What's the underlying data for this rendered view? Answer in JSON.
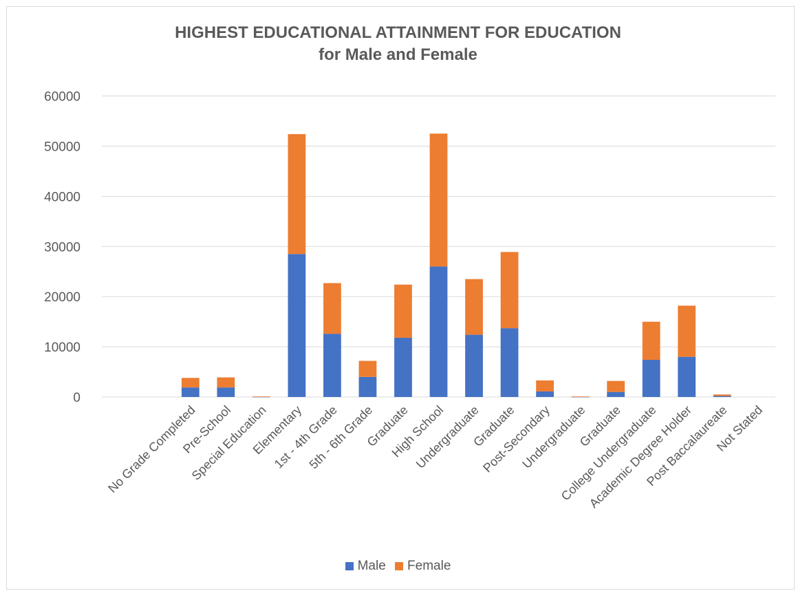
{
  "chart_data": {
    "type": "bar",
    "stacked": true,
    "title_line1": "HIGHEST EDUCATIONAL ATTAINMENT FOR EDUCATION",
    "title_line2": "for Male and Female",
    "categories": [
      "",
      "",
      "No Grade Completed",
      "Pre-School",
      "Special Education",
      "Elementary",
      "1st - 4th Grade",
      "5th - 6th Grade",
      "Graduate",
      "High School",
      "Undergraduate",
      "Graduate",
      "Post-Secondary",
      "Undergraduate",
      "Graduate",
      "College Undergraduate",
      "Academic Degree Holder",
      "Post Baccalaureate",
      "Not Stated"
    ],
    "series": [
      {
        "name": "Male",
        "color": "#4472c4",
        "values": [
          0,
          0,
          1900,
          1900,
          50,
          28500,
          12600,
          4000,
          11800,
          26000,
          12400,
          13700,
          1100,
          50,
          1000,
          7400,
          8000,
          200,
          0
        ]
      },
      {
        "name": "Female",
        "color": "#ed7d31",
        "values": [
          0,
          0,
          1900,
          2000,
          50,
          23900,
          10100,
          3200,
          10600,
          26500,
          11100,
          15200,
          2200,
          50,
          2200,
          7600,
          10200,
          300,
          0
        ]
      }
    ],
    "ylim": [
      0,
      60000
    ],
    "yticks": [
      0,
      10000,
      20000,
      30000,
      40000,
      50000,
      60000
    ],
    "grid": true,
    "legend_position": "bottom"
  }
}
